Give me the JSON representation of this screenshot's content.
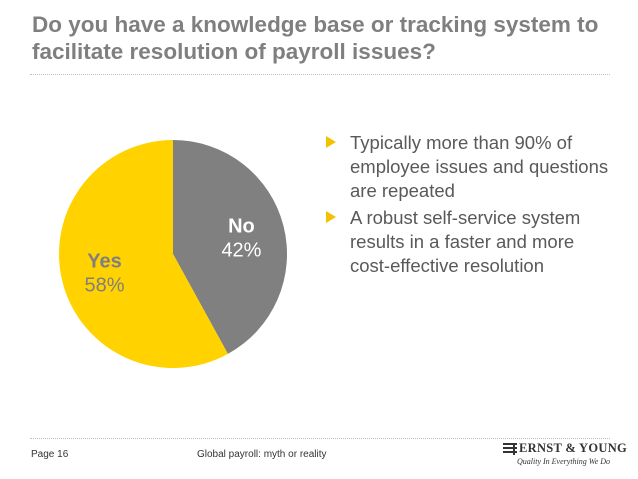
{
  "slide": {
    "title": "Do you have a knowledge base or tracking system to facilitate resolution of payroll issues?"
  },
  "bullets": [
    "Typically more than 90% of employee issues and questions are repeated",
    "A robust self-service system results in a faster and more cost-effective resolution"
  ],
  "footer": {
    "page": "Page 16",
    "title": "Global payroll: myth or reality"
  },
  "logo": {
    "name": "ERNST & YOUNG",
    "tagline": "Quality In Everything We Do"
  },
  "colors": {
    "title": "#7f7f7f",
    "bullet_arrow": "#f2c200",
    "yes": "#ffd200",
    "no": "#808080"
  },
  "chart_data": {
    "type": "pie",
    "title": "",
    "slices": [
      {
        "name": "No",
        "value": 42,
        "label": "42%",
        "color": "#808080",
        "label_color": "#ffffff"
      },
      {
        "name": "Yes",
        "value": 58,
        "label": "58%",
        "color": "#ffd200",
        "label_color": "#7f7f7f"
      }
    ],
    "start": "12 o'clock",
    "direction": "clockwise"
  }
}
